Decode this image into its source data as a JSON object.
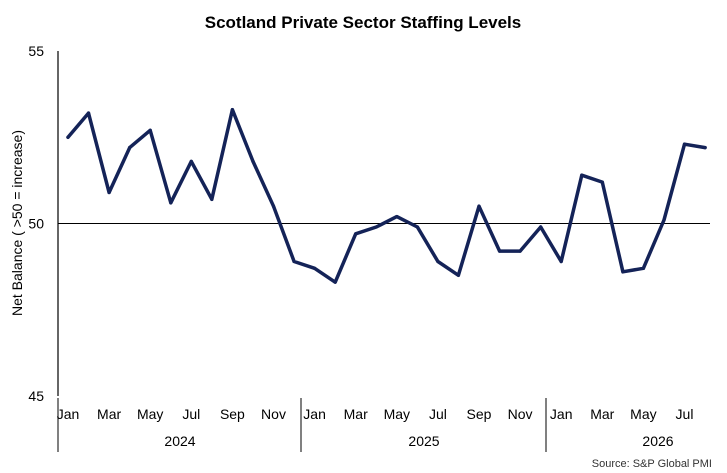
{
  "chart_data": {
    "type": "line",
    "title": "Scotland Private Sector Staffing Levels",
    "ylabel": "Net Balance ( >50 = increase)",
    "xlabel": "",
    "ylim": [
      45,
      55
    ],
    "yticks": [
      "45",
      "50",
      "55"
    ],
    "reference_line": 50,
    "grid": false,
    "legend": "none",
    "source": "Source: S&P Global PMI",
    "line_color": "#142358",
    "x": [
      "Jan 2024",
      "Feb 2024",
      "Mar 2024",
      "Apr 2024",
      "May 2024",
      "Jun 2024",
      "Jul 2024",
      "Aug 2024",
      "Sep 2024",
      "Oct 2024",
      "Nov 2024",
      "Dec 2024",
      "Jan 2025",
      "Feb 2025",
      "Mar 2025",
      "Apr 2025",
      "May 2025",
      "Jun 2025",
      "Jul 2025",
      "Aug 2025",
      "Sep 2025",
      "Oct 2025",
      "Nov 2025",
      "Dec 2025",
      "Jan 2026",
      "Feb 2026",
      "Mar 2026",
      "Apr 2026",
      "May 2026",
      "Jun 2026",
      "Jul 2026",
      "Aug 2026"
    ],
    "month_labels": [
      "Jan",
      "",
      "Mar",
      "",
      "May",
      "",
      "Jul",
      "",
      "Sep",
      "",
      "Nov",
      "",
      "Jan",
      "",
      "Mar",
      "",
      "May",
      "",
      "Jul",
      "",
      "Sep",
      "",
      "Nov",
      "",
      "Jan",
      "",
      "Mar",
      "",
      "May",
      "",
      "Jul",
      ""
    ],
    "years": [
      "2024",
      "2025",
      "2026"
    ],
    "series": [
      {
        "values": [
          52.5,
          53.2,
          50.9,
          52.2,
          52.7,
          50.6,
          51.8,
          50.7,
          53.3,
          51.8,
          50.5,
          48.9,
          48.7,
          48.3,
          49.7,
          49.9,
          50.2,
          49.9,
          48.9,
          48.5,
          50.5,
          49.2,
          49.2,
          49.9,
          48.9,
          51.4,
          51.2,
          48.6,
          48.7,
          50.1,
          52.3,
          52.2
        ]
      }
    ]
  }
}
